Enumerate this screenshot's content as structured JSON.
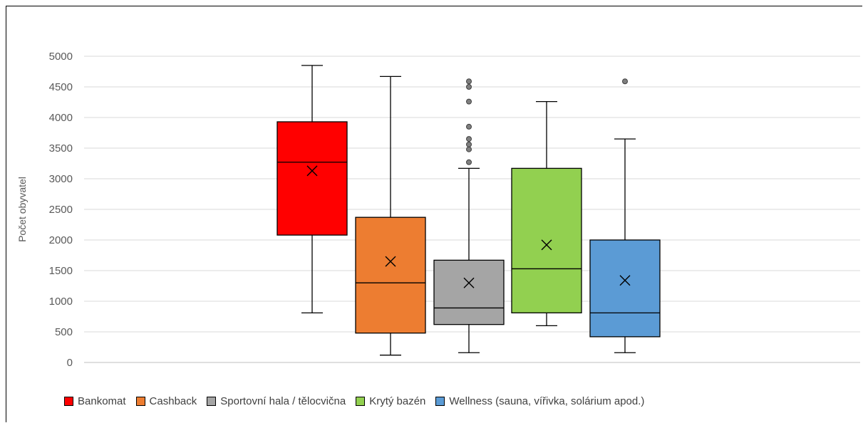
{
  "chart_data": {
    "type": "box",
    "title": "",
    "xlabel": "",
    "ylabel": "Počet obyvatel",
    "ylim": [
      0,
      5000
    ],
    "yticks": [
      0,
      500,
      1000,
      1500,
      2000,
      2500,
      3000,
      3500,
      4000,
      4500,
      5000
    ],
    "grid": true,
    "legend_position": "bottom",
    "series": [
      {
        "name": "Bankomat",
        "color": "#ff0000",
        "min": 810,
        "q1": 2080,
        "median": 3270,
        "q3": 3930,
        "max": 4850,
        "mean": 3130,
        "outliers": []
      },
      {
        "name": "Cashback",
        "color": "#ed7d31",
        "min": 120,
        "q1": 480,
        "median": 1300,
        "q3": 2370,
        "max": 4670,
        "mean": 1650,
        "outliers": []
      },
      {
        "name": "Sportovní hala / tělocvična",
        "color": "#a5a5a5",
        "min": 160,
        "q1": 620,
        "median": 890,
        "q3": 1670,
        "max": 3170,
        "mean": 1300,
        "outliers": [
          3270,
          3480,
          3560,
          3650,
          3850,
          4260,
          4500,
          4590
        ]
      },
      {
        "name": "Krytý bazén",
        "color": "#92d050",
        "min": 600,
        "q1": 810,
        "median": 1530,
        "q3": 3170,
        "max": 4260,
        "mean": 1920,
        "outliers": []
      },
      {
        "name": "Wellness (sauna, vířivka, solárium apod.)",
        "color": "#5b9bd5",
        "min": 160,
        "q1": 420,
        "median": 810,
        "q3": 2000,
        "max": 3650,
        "mean": 1340,
        "outliers": [
          4590
        ]
      }
    ]
  }
}
